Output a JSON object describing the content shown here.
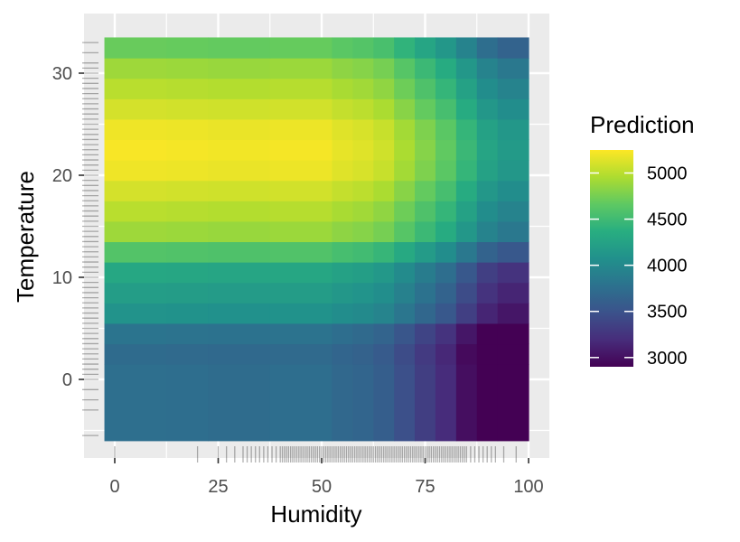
{
  "chart_data": {
    "type": "heatmap",
    "title": "",
    "xlabel": "Humidity",
    "ylabel": "Temperature",
    "xlim": [
      -5,
      102
    ],
    "ylim": [
      -8,
      35
    ],
    "x_ticks": [
      0,
      25,
      50,
      75,
      100
    ],
    "y_ticks": [
      0,
      10,
      20,
      30
    ],
    "x_tick_labels": [
      "0",
      "25",
      "50",
      "75",
      "100"
    ],
    "y_tick_labels": [
      "0",
      "10",
      "20",
      "30"
    ],
    "x_breaks": [
      -2.5,
      12.5,
      22.5,
      37.5,
      52.5,
      57.5,
      62.5,
      67.5,
      72.5,
      77.5,
      82.5,
      87.5,
      92.5,
      100
    ],
    "y_breaks": [
      -6,
      1.5,
      3.5,
      5.5,
      7.5,
      9.5,
      11.5,
      13.5,
      15.5,
      17.5,
      19.5,
      21.5,
      23.5,
      25.5,
      27.5,
      29.5,
      31.5,
      33.5
    ],
    "row_offsets": [
      -1250,
      -1280,
      -1200,
      -900,
      -800,
      -700,
      -400,
      -100,
      0,
      100,
      200,
      230,
      200,
      100,
      0,
      -100,
      -300
    ],
    "col_offsets": [
      0,
      -10,
      -20,
      -10,
      -60,
      -90,
      -150,
      -280,
      -420,
      -560,
      -760,
      -960,
      -1060
    ],
    "base_value": 5000,
    "legend": {
      "title": "Prediction",
      "min": 2900,
      "max": 5250,
      "ticks": [
        3000,
        3500,
        4000,
        4500,
        5000
      ],
      "tick_labels": [
        "3000",
        "3500",
        "4000",
        "4500",
        "5000"
      ],
      "position": "right"
    },
    "rug_x": [
      0,
      20,
      25,
      27,
      29,
      31,
      32,
      33,
      34,
      35,
      36,
      37,
      38,
      39,
      40,
      40.5,
      41,
      41.5,
      42,
      42.5,
      43,
      43.5,
      44,
      44.5,
      45,
      45.5,
      46,
      46.5,
      47,
      47.5,
      48,
      48.5,
      49,
      49.5,
      50,
      50.5,
      51,
      51.5,
      52,
      52.5,
      53,
      53.5,
      54,
      54.5,
      55,
      55.5,
      56,
      56.5,
      57,
      57.5,
      58,
      58.5,
      59,
      59.5,
      60,
      60.5,
      61,
      61.5,
      62,
      62.5,
      63,
      63.5,
      64,
      64.5,
      65,
      65.5,
      66,
      66.5,
      67,
      67.5,
      68,
      68.5,
      69,
      69.5,
      70,
      70.5,
      71,
      71.5,
      72,
      72.5,
      73,
      73.5,
      74,
      74.5,
      75,
      75.5,
      76,
      76.5,
      77,
      77.5,
      78,
      78.5,
      79,
      79.5,
      80,
      80.5,
      81,
      81.5,
      82,
      82.5,
      83,
      83.5,
      84,
      84.5,
      85,
      86,
      87,
      88,
      89,
      90,
      91,
      92,
      94,
      97
    ],
    "rug_y": [
      -5.5,
      -3,
      -2,
      -1,
      0,
      0.5,
      1,
      1.5,
      2,
      2.5,
      3,
      3.5,
      4,
      4.5,
      5,
      5.5,
      6,
      6.5,
      7,
      7.5,
      8,
      8.5,
      9,
      9.5,
      10,
      10.5,
      11,
      11.5,
      12,
      12.5,
      13,
      13.5,
      14,
      14.5,
      15,
      15.5,
      16,
      16.5,
      17,
      17.5,
      18,
      18.5,
      19,
      19.5,
      20,
      20.5,
      21,
      21.5,
      22,
      22.5,
      23,
      23.5,
      24,
      24.5,
      25,
      25.5,
      26,
      26.5,
      27,
      27.5,
      28,
      28.5,
      29,
      29.5,
      30,
      30.5,
      31,
      32,
      33
    ]
  }
}
